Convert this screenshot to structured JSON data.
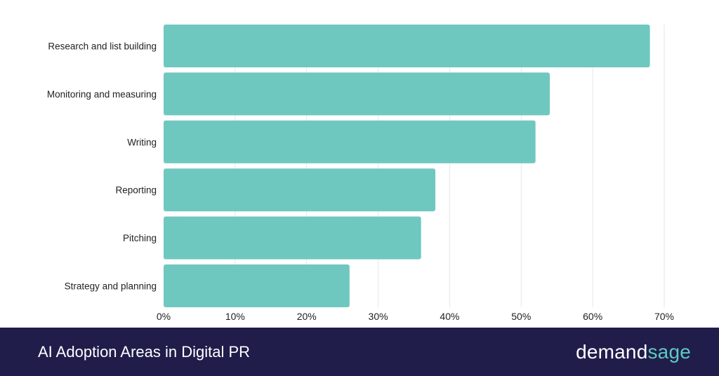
{
  "footer": {
    "title": "AI Adoption Areas in Digital PR",
    "brand_part1": "demand",
    "brand_part2": "sage"
  },
  "colors": {
    "bar": "#6fc8c0",
    "footer_bg": "#201d4b",
    "brand_accent": "#5ec9bf",
    "grid": "#e6e6e6",
    "text": "#222222"
  },
  "chart_data": {
    "type": "bar",
    "orientation": "horizontal",
    "categories": [
      "Research and list building",
      "Monitoring and measuring",
      "Writing",
      "Reporting",
      "Pitching",
      "Strategy and planning"
    ],
    "values": [
      68,
      54,
      52,
      38,
      36,
      26
    ],
    "xlim": [
      0,
      70
    ],
    "xticks": [
      "0%",
      "10%",
      "20%",
      "30%",
      "40%",
      "50%",
      "60%",
      "70%"
    ],
    "grid": true
  }
}
